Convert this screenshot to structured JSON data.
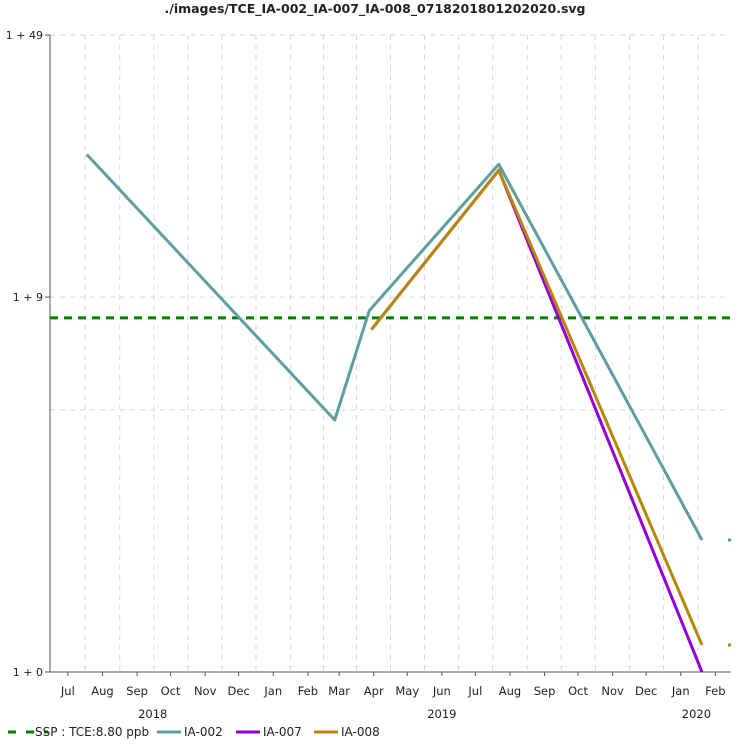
{
  "chart_data": {
    "type": "line",
    "title": "./images/TCE_IA-002_IA-007_IA-008_0718201801202020.svg",
    "xlabel": "",
    "ylabel": "",
    "y_scale": "log",
    "y_ticks": [
      {
        "value": 1,
        "label": "1 + 0"
      },
      {
        "value": 10,
        "label": "1 + 9"
      },
      {
        "value": 50,
        "label": "1 + 49"
      }
    ],
    "y_gridline_values": [
      1,
      5,
      10,
      50
    ],
    "months": [
      "Jul",
      "Aug",
      "Sep",
      "Oct",
      "Nov",
      "Dec",
      "Jan",
      "Feb",
      "Mar",
      "Apr",
      "May",
      "Jun",
      "Jul",
      "Aug",
      "Sep",
      "Oct",
      "Nov",
      "Dec",
      "Jan",
      "Feb"
    ],
    "month_dates": [
      "2018-07-01",
      "2018-08-01",
      "2018-09-01",
      "2018-10-01",
      "2018-11-01",
      "2018-12-01",
      "2019-01-01",
      "2019-02-01",
      "2019-03-01",
      "2019-04-01",
      "2019-05-01",
      "2019-06-01",
      "2019-07-01",
      "2019-08-01",
      "2019-09-01",
      "2019-10-01",
      "2019-11-01",
      "2019-12-01",
      "2020-01-01",
      "2020-02-01"
    ],
    "years": [
      {
        "label": "2018",
        "date": "2018-09-15"
      },
      {
        "label": "2019",
        "date": "2019-06-01"
      },
      {
        "label": "2020",
        "date": "2020-01-15"
      }
    ],
    "x_range": [
      "2018-06-15",
      "2020-02-15"
    ],
    "ylim": [
      1,
      50
    ],
    "grid": true,
    "legend_position": "bottom",
    "threshold": {
      "name": "SSP : TCE:8.80 ppb",
      "value": 8.8,
      "color": "#008000"
    },
    "series": [
      {
        "name": "IA-002",
        "color": "#5f9ea0",
        "points": [
          {
            "x": "2018-07-18",
            "y": 24
          },
          {
            "x": "2019-02-25",
            "y": 4.7
          },
          {
            "x": "2019-03-28",
            "y": 9.2
          },
          {
            "x": "2019-07-22",
            "y": 22.6
          },
          {
            "x": "2020-01-20",
            "y": 2.25
          }
        ],
        "extra_points": [
          {
            "x": "2020-02-15",
            "y": 2.25
          }
        ]
      },
      {
        "name": "IA-007",
        "color": "#9400d3",
        "points": [
          {
            "x": "2019-03-30",
            "y": 8.2
          },
          {
            "x": "2019-07-22",
            "y": 21.8
          },
          {
            "x": "2020-01-20",
            "y": 1.0
          }
        ]
      },
      {
        "name": "IA-008",
        "color": "#b8860b",
        "points": [
          {
            "x": "2019-03-30",
            "y": 8.2
          },
          {
            "x": "2019-07-22",
            "y": 21.8
          },
          {
            "x": "2020-01-20",
            "y": 1.18
          }
        ],
        "extra_points": [
          {
            "x": "2020-02-15",
            "y": 1.18
          }
        ]
      }
    ]
  }
}
